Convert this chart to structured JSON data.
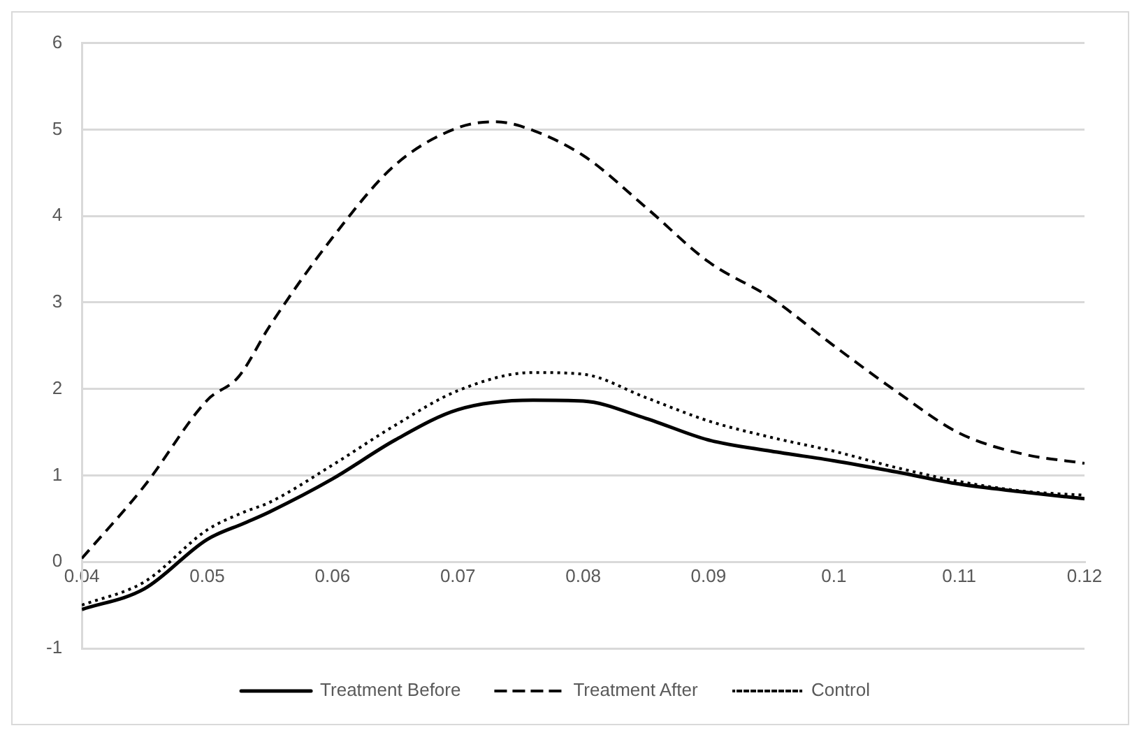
{
  "chart_data": {
    "type": "line",
    "xlim": [
      0.04,
      0.12
    ],
    "xticks": [
      0.04,
      0.05,
      0.06,
      0.07,
      0.08,
      0.09,
      0.1,
      0.11,
      0.12
    ],
    "ylim": [
      -1,
      6
    ],
    "yticks": [
      -1,
      0,
      1,
      2,
      3,
      4,
      5,
      6
    ],
    "grid": "y",
    "legend": "bottom",
    "marker": "none",
    "series": [
      {
        "name": "Treatment Before",
        "color": "#000000",
        "line_style": "solid",
        "x": [
          0.04,
          0.045,
          0.05,
          0.053,
          0.055,
          0.06,
          0.065,
          0.07,
          0.076,
          0.08,
          0.085,
          0.09,
          0.095,
          0.1,
          0.105,
          0.11,
          0.115,
          0.12
        ],
        "values": [
          -0.55,
          -0.31,
          0.26,
          0.45,
          0.58,
          0.96,
          1.41,
          1.76,
          1.87,
          1.86,
          1.66,
          1.41,
          1.28,
          1.17,
          1.04,
          0.9,
          0.81,
          0.73
        ]
      },
      {
        "name": "Treatment After",
        "color": "#000000",
        "line_style": "dashed",
        "x": [
          0.04,
          0.045,
          0.05,
          0.0525,
          0.055,
          0.06,
          0.065,
          0.07,
          0.073,
          0.075,
          0.08,
          0.085,
          0.09,
          0.095,
          0.1,
          0.105,
          0.11,
          0.115,
          0.12
        ],
        "values": [
          0.04,
          0.88,
          1.87,
          2.14,
          2.73,
          3.75,
          4.59,
          5.02,
          5.09,
          5.04,
          4.7,
          4.1,
          3.47,
          3.05,
          2.5,
          1.97,
          1.49,
          1.25,
          1.14
        ]
      },
      {
        "name": "Control",
        "color": "#000000",
        "line_style": "dotted",
        "x": [
          0.04,
          0.045,
          0.05,
          0.053,
          0.055,
          0.06,
          0.065,
          0.07,
          0.076,
          0.08,
          0.085,
          0.09,
          0.095,
          0.1,
          0.105,
          0.11,
          0.115,
          0.12
        ],
        "values": [
          -0.5,
          -0.23,
          0.37,
          0.58,
          0.69,
          1.12,
          1.58,
          1.98,
          2.19,
          2.17,
          1.9,
          1.63,
          1.44,
          1.28,
          1.09,
          0.93,
          0.82,
          0.77
        ]
      }
    ]
  }
}
